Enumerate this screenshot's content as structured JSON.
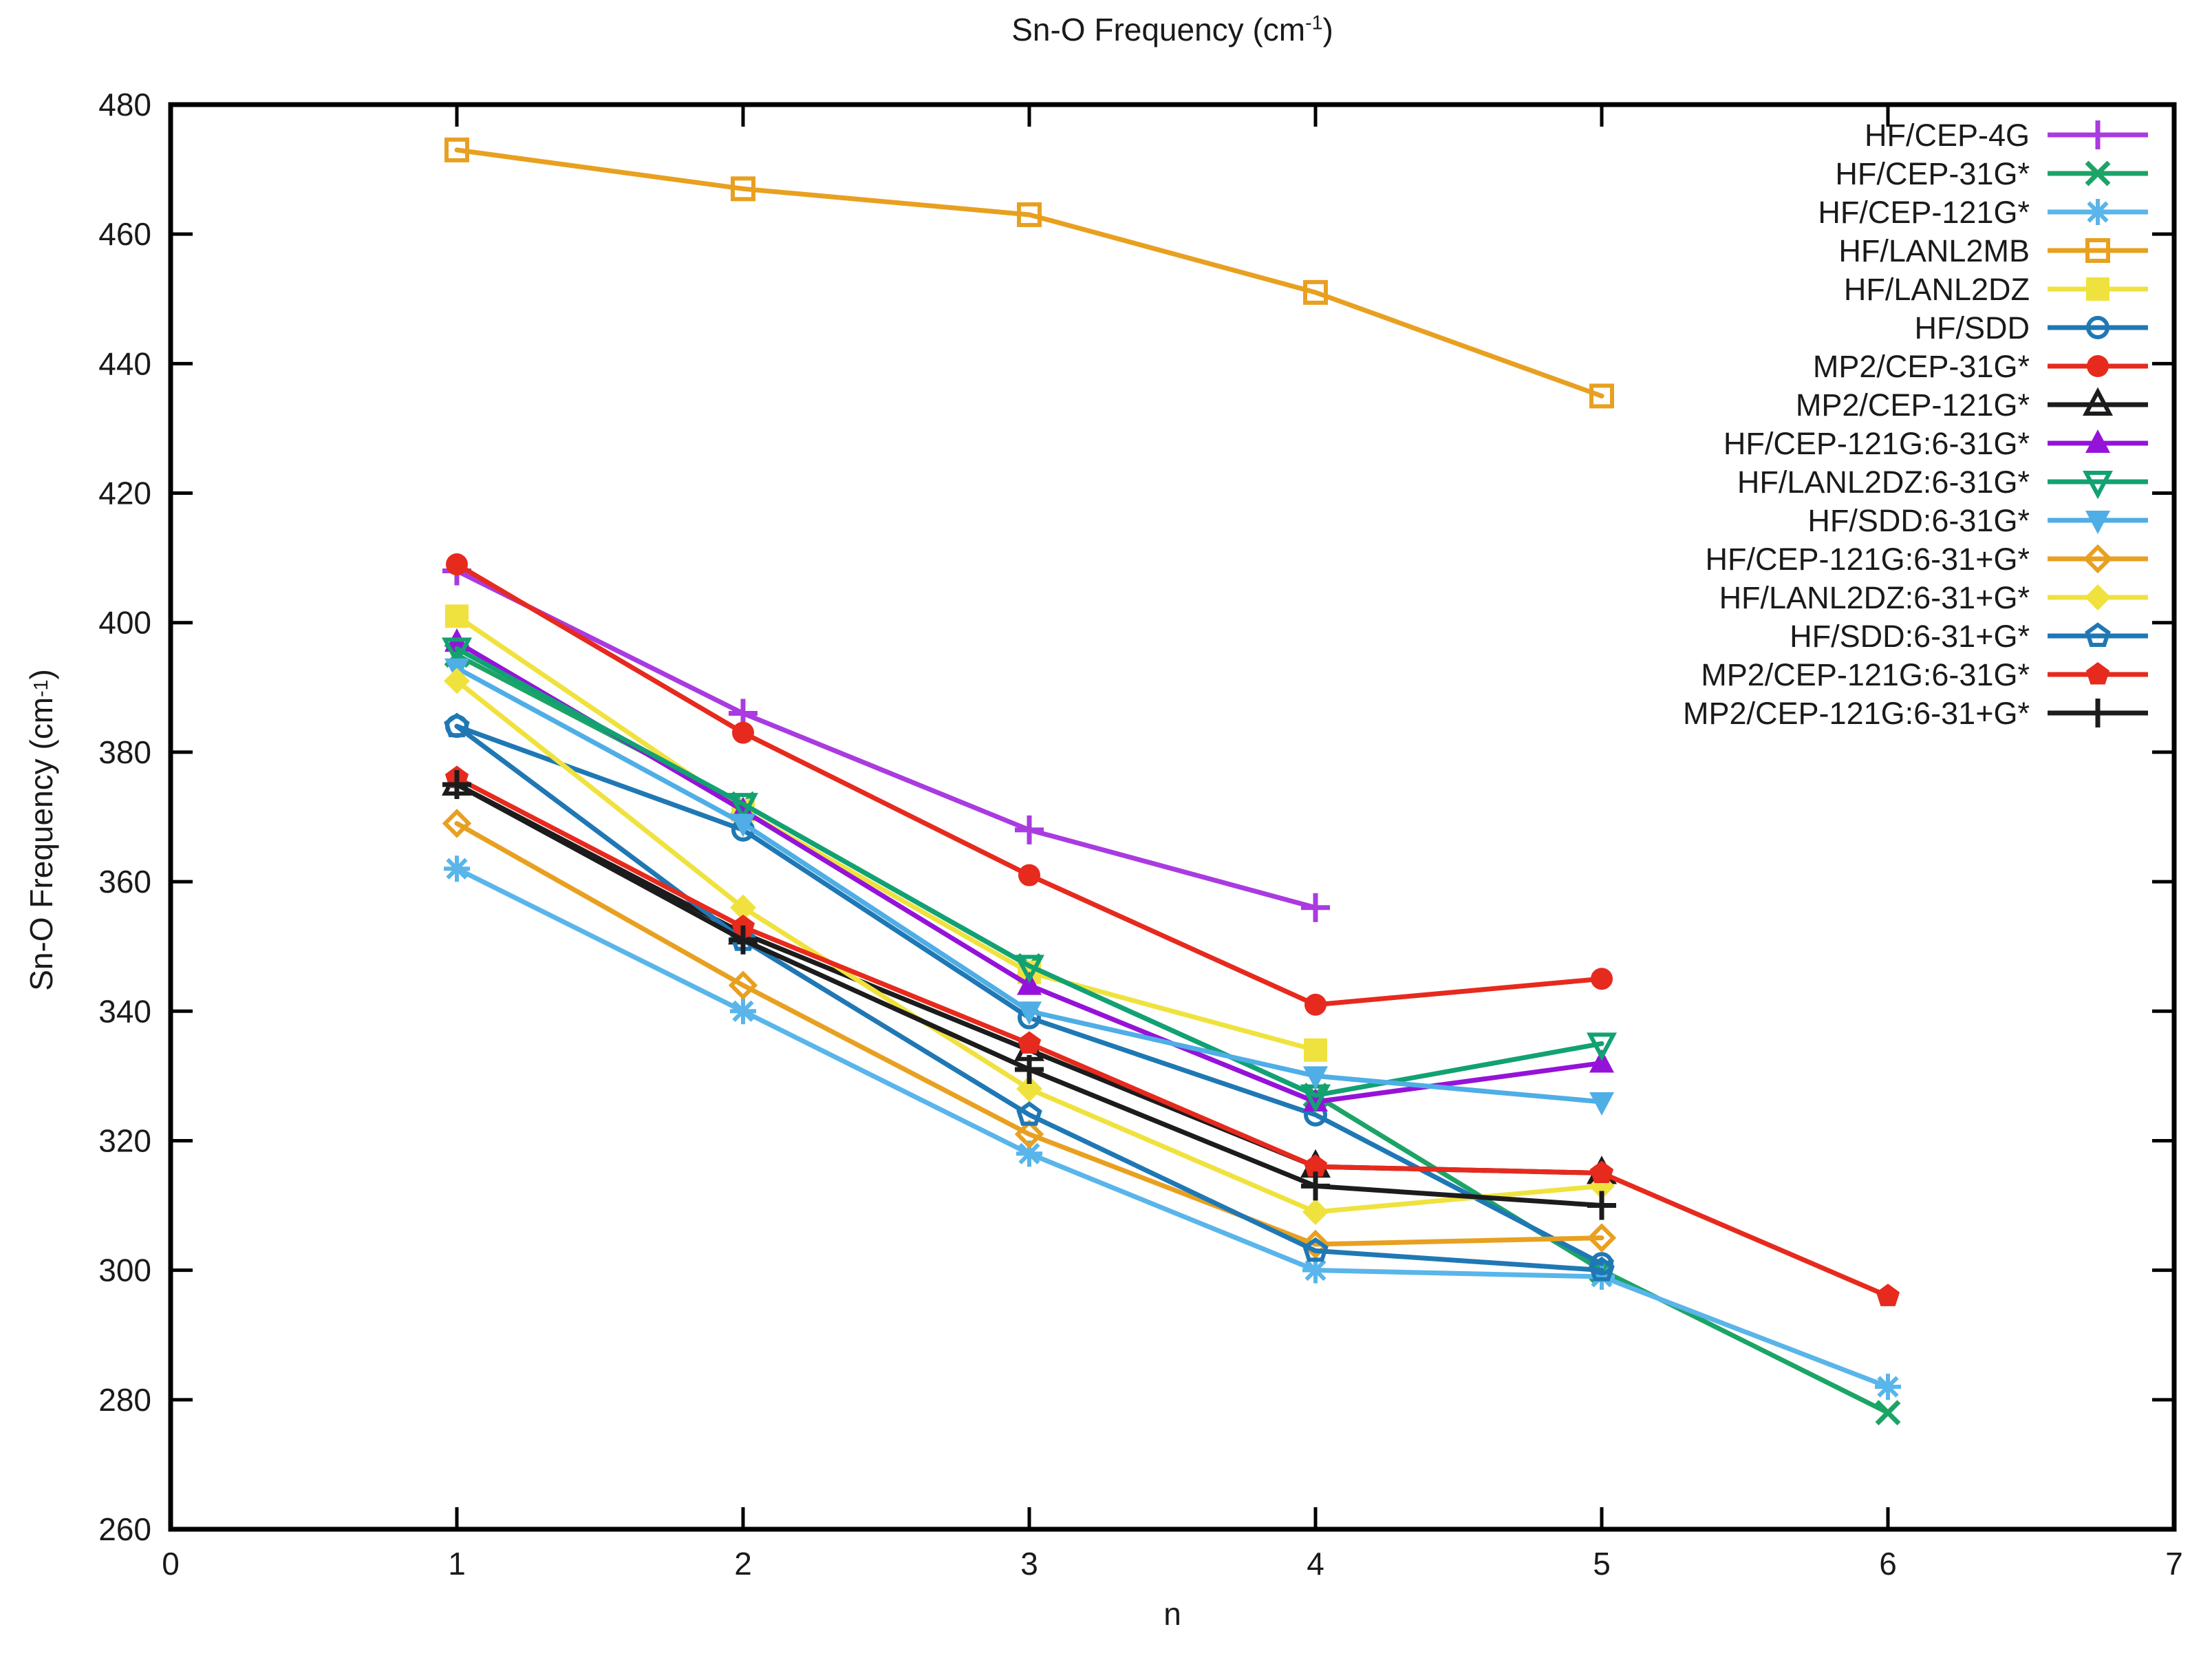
{
  "page": {
    "background": "#ffffff"
  },
  "chart_data": {
    "type": "line",
    "title": {
      "prefix": "Sn-O Frequency (cm",
      "sup": "-1",
      "suffix": ")"
    },
    "xlabel": "n",
    "ylabel": {
      "prefix": "Sn-O Frequency (cm",
      "sup": "-1",
      "suffix": ")"
    },
    "xlim": [
      0,
      7
    ],
    "ylim": [
      260,
      480
    ],
    "xticks": [
      0,
      1,
      2,
      3,
      4,
      5,
      6,
      7
    ],
    "yticks": [
      260,
      280,
      300,
      320,
      340,
      360,
      380,
      400,
      420,
      440,
      460,
      480
    ],
    "grid": false,
    "legend_position": "inside-top-right",
    "axis_color": "#000000",
    "tick_label_color": "#1a1a1a",
    "series": [
      {
        "name": "HF/CEP-4G",
        "slug": "hf-cep-4g",
        "color": "#a93be0",
        "marker": "plus",
        "points": [
          [
            1,
            408
          ],
          [
            2,
            386
          ],
          [
            3,
            368
          ],
          [
            4,
            356
          ]
        ]
      },
      {
        "name": "HF/CEP-31G*",
        "slug": "hf-cep-31gs",
        "color": "#1ca467",
        "marker": "cross",
        "points": [
          [
            1,
            395
          ],
          [
            2,
            372
          ],
          [
            3,
            347
          ],
          [
            4,
            327
          ],
          [
            5,
            300
          ],
          [
            6,
            278
          ]
        ]
      },
      {
        "name": "HF/CEP-121G*",
        "slug": "hf-cep-121gs",
        "color": "#59b5ea",
        "marker": "asterisk",
        "points": [
          [
            1,
            362
          ],
          [
            2,
            340
          ],
          [
            3,
            318
          ],
          [
            4,
            300
          ],
          [
            5,
            299
          ],
          [
            6,
            282
          ]
        ]
      },
      {
        "name": "HF/LANL2MB",
        "slug": "hf-lanl2mb",
        "color": "#e8a020",
        "marker": "square-open",
        "points": [
          [
            1,
            473
          ],
          [
            2,
            467
          ],
          [
            3,
            463
          ],
          [
            4,
            451
          ],
          [
            5,
            435
          ]
        ]
      },
      {
        "name": "HF/LANL2DZ",
        "slug": "hf-lanl2dz",
        "color": "#f0e23e",
        "marker": "square",
        "points": [
          [
            1,
            401
          ],
          [
            2,
            371
          ],
          [
            3,
            346
          ],
          [
            4,
            334
          ]
        ]
      },
      {
        "name": "HF/SDD",
        "slug": "hf-sdd",
        "color": "#1f78b4",
        "marker": "circle-open",
        "points": [
          [
            1,
            384
          ],
          [
            2,
            368
          ],
          [
            3,
            339
          ],
          [
            4,
            324
          ],
          [
            5,
            301
          ]
        ]
      },
      {
        "name": "MP2/CEP-31G*",
        "slug": "mp2-cep-31gs",
        "color": "#e62a1e",
        "marker": "circle",
        "points": [
          [
            1,
            409
          ],
          [
            2,
            383
          ],
          [
            3,
            361
          ],
          [
            4,
            341
          ],
          [
            5,
            345
          ]
        ]
      },
      {
        "name": "MP2/CEP-121G*",
        "slug": "mp2-cep-121gs",
        "color": "#1c1c1c",
        "marker": "triangle-open",
        "points": [
          [
            1,
            375
          ],
          [
            2,
            352
          ],
          [
            3,
            334
          ],
          [
            4,
            316
          ],
          [
            5,
            315
          ]
        ]
      },
      {
        "name": "HF/CEP-121G:6-31G*",
        "slug": "hf-cep-121g-6-31gs",
        "color": "#9513d8",
        "marker": "triangle",
        "points": [
          [
            1,
            397
          ],
          [
            2,
            371
          ],
          [
            3,
            344
          ],
          [
            4,
            326
          ],
          [
            5,
            332
          ]
        ]
      },
      {
        "name": "HF/LANL2DZ:6-31G*",
        "slug": "hf-lanl2dz-6-31gs",
        "color": "#12a173",
        "marker": "triangle-down-open",
        "points": [
          [
            1,
            396
          ],
          [
            2,
            372
          ],
          [
            3,
            347
          ],
          [
            4,
            327
          ],
          [
            5,
            335
          ]
        ]
      },
      {
        "name": "HF/SDD:6-31G*",
        "slug": "hf-sdd-6-31gs",
        "color": "#4faee6",
        "marker": "triangle-down",
        "points": [
          [
            1,
            393
          ],
          [
            2,
            369
          ],
          [
            3,
            340
          ],
          [
            4,
            330
          ],
          [
            5,
            326
          ]
        ]
      },
      {
        "name": "HF/CEP-121G:6-31+G*",
        "slug": "hf-cep-121g-6-31pgs",
        "color": "#e8a020",
        "marker": "diamond-open",
        "points": [
          [
            1,
            369
          ],
          [
            2,
            344
          ],
          [
            3,
            321
          ],
          [
            4,
            304
          ],
          [
            5,
            305
          ]
        ]
      },
      {
        "name": "HF/LANL2DZ:6-31+G*",
        "slug": "hf-lanl2dz-6-31pgs",
        "color": "#f0e23e",
        "marker": "diamond",
        "points": [
          [
            1,
            391
          ],
          [
            2,
            356
          ],
          [
            3,
            328
          ],
          [
            4,
            309
          ],
          [
            5,
            313
          ]
        ]
      },
      {
        "name": "HF/SDD:6-31+G*",
        "slug": "hf-sdd-6-31pgs",
        "color": "#1f78b4",
        "marker": "pentagon-open",
        "points": [
          [
            1,
            384
          ],
          [
            2,
            351
          ],
          [
            3,
            324
          ],
          [
            4,
            303
          ],
          [
            5,
            300
          ]
        ]
      },
      {
        "name": "MP2/CEP-121G:6-31G*",
        "slug": "mp2-cep-121g-6-31gs",
        "color": "#e62a1e",
        "marker": "pentagon",
        "points": [
          [
            1,
            376
          ],
          [
            2,
            353
          ],
          [
            3,
            335
          ],
          [
            4,
            316
          ],
          [
            5,
            315
          ],
          [
            6,
            296
          ]
        ]
      },
      {
        "name": "MP2/CEP-121G:6-31+G*",
        "slug": "mp2-cep-121g-6-31pgs",
        "color": "#1c1c1c",
        "marker": "plus",
        "points": [
          [
            1,
            375
          ],
          [
            2,
            351
          ],
          [
            3,
            331
          ],
          [
            4,
            313
          ],
          [
            5,
            310
          ]
        ]
      }
    ]
  }
}
